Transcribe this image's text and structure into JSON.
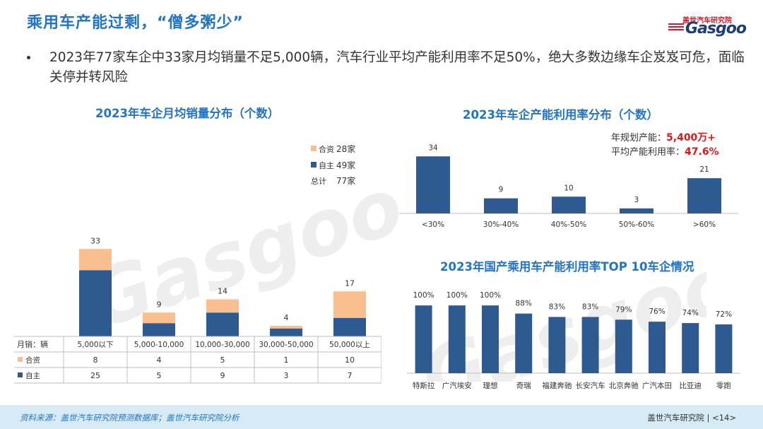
{
  "title": "乘用车产能过剩，“僧多粥少”",
  "logo": {
    "cn": "盖世汽车研究院",
    "en": "Gasgoo"
  },
  "bullet": "2023年77家车企中33家月均销量不足5,000辆，汽车行业平均产能利用率不足50%，绝大多数边缘车企岌岌可危，面临关停并转风险",
  "colors": {
    "self": "#2e5a92",
    "jv": "#f9bf8f",
    "accent": "#2474c2",
    "red": "#d7191c"
  },
  "chart_data": [
    {
      "id": "monthly_sales_distribution",
      "type": "bar",
      "stacked": true,
      "title": "2023年车企月均销量分布（个数）",
      "categories": [
        "5,000以下",
        "5,000-10,000",
        "10,000-30,000",
        "30,000-50,000",
        "50,000以上"
      ],
      "series": [
        {
          "name": "自主",
          "values": [
            25,
            5,
            9,
            3,
            7
          ]
        },
        {
          "name": "合资",
          "values": [
            8,
            4,
            5,
            1,
            10
          ]
        }
      ],
      "totals": [
        33,
        9,
        14,
        4,
        17
      ],
      "legend": [
        {
          "name": "合资",
          "value": "28家"
        },
        {
          "name": "自主",
          "value": "49家"
        },
        {
          "name": "总计",
          "value": "77家"
        }
      ],
      "table_header": "月销：辆",
      "ylim": [
        0,
        40
      ]
    },
    {
      "id": "capacity_utilization_distribution",
      "type": "bar",
      "title": "2023年车企产能利用率分布（个数）",
      "categories": [
        "<30%",
        "30%-40%",
        "40%-50%",
        "50%-60%",
        ">60%"
      ],
      "values": [
        34,
        9,
        10,
        3,
        21
      ],
      "annotations": [
        {
          "label": "年规划产能：",
          "value": "5,400万+"
        },
        {
          "label": "平均产能利用率：",
          "value": "47.6%"
        }
      ],
      "ylim": [
        0,
        40
      ]
    },
    {
      "id": "top10_utilization",
      "type": "bar",
      "title": "2023年国产乘用车产能利用率TOP 10车企情况",
      "categories": [
        "特斯拉",
        "广汽埃安",
        "理想",
        "奇瑞",
        "福建奔驰",
        "长安汽车",
        "北京奔驰",
        "广汽本田",
        "比亚迪",
        "零跑"
      ],
      "values": [
        100,
        100,
        100,
        88,
        83,
        83,
        79,
        76,
        74,
        72
      ],
      "value_suffix": "%",
      "ylim": [
        0,
        120
      ]
    }
  ],
  "footer": {
    "source": "资料来源：盖世汽车研究院预测数据库；盖世汽车研究院分析",
    "right": "盖世汽车研究院 | <14>"
  }
}
